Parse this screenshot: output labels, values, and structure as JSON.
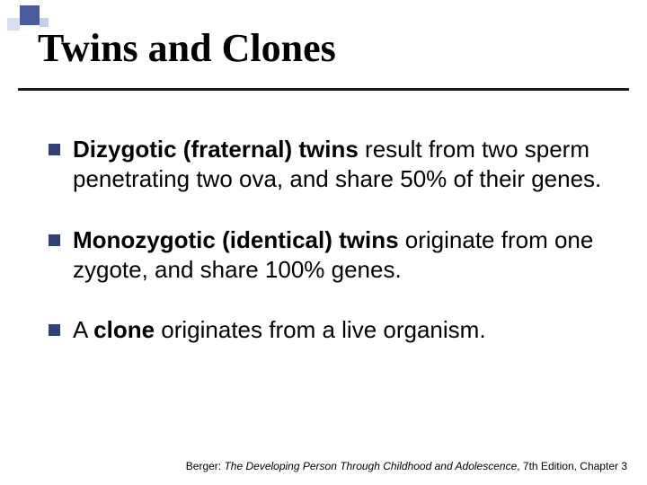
{
  "title": "Twins and Clones",
  "bullets": [
    {
      "bold": "Dizygotic (fraternal) twins",
      "rest": " result from two sperm penetrating two ova, and share 50% of their genes."
    },
    {
      "bold": "Monozygotic (identical) twins",
      "rest": " originate from one zygote, and share 100% genes."
    },
    {
      "pre": "A ",
      "bold": "clone",
      "rest": " originates from a live organism."
    }
  ],
  "footer": {
    "prefix": "Berger: ",
    "italic": "The Developing Person Through Childhood and Adolescence",
    "suffix": ", 7th Edition, Chapter 3"
  },
  "colors": {
    "bullet": "#32407a",
    "underline": "#1a1a1a",
    "text": "#000000"
  }
}
